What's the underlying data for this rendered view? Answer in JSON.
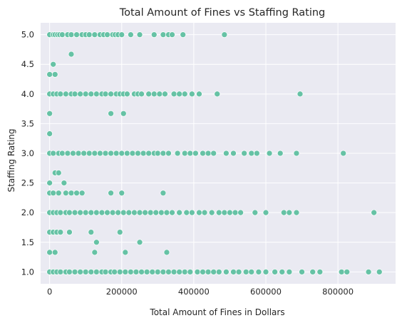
{
  "chart_data": {
    "type": "scatter",
    "title": "Total Amount of Fines vs Staffing Rating",
    "xlabel": "Total Amount of Fines in Dollars",
    "ylabel": "Staffing Rating",
    "xlim": [
      -25000,
      960000
    ],
    "ylim": [
      0.8,
      5.2
    ],
    "xticks": [
      0,
      200000,
      400000,
      600000,
      800000
    ],
    "xtick_labels": [
      "0",
      "200000",
      "400000",
      "600000",
      "800000"
    ],
    "yticks": [
      1.0,
      1.5,
      2.0,
      2.5,
      3.0,
      3.5,
      4.0,
      4.5,
      5.0
    ],
    "ytick_labels": [
      "1.0",
      "1.5",
      "2.0",
      "2.5",
      "3.0",
      "3.5",
      "4.0",
      "4.5",
      "5.0"
    ],
    "grid": true,
    "background": "#eaeaf2",
    "marker_color": "#66c2a5",
    "series": [
      {
        "points": [
          [
            0,
            5.0
          ],
          [
            10000,
            5.0
          ],
          [
            15000,
            5.0
          ],
          [
            22000,
            5.0
          ],
          [
            28000,
            5.0
          ],
          [
            35000,
            5.0
          ],
          [
            50000,
            5.0
          ],
          [
            60000,
            5.0
          ],
          [
            75000,
            5.0
          ],
          [
            90000,
            5.0
          ],
          [
            100000,
            5.0
          ],
          [
            110000,
            5.0
          ],
          [
            125000,
            5.0
          ],
          [
            140000,
            5.0
          ],
          [
            150000,
            5.0
          ],
          [
            160000,
            5.0
          ],
          [
            175000,
            5.0
          ],
          [
            182000,
            5.0
          ],
          [
            190000,
            5.0
          ],
          [
            200000,
            5.0
          ],
          [
            225000,
            5.0
          ],
          [
            250000,
            5.0
          ],
          [
            290000,
            5.0
          ],
          [
            315000,
            5.0
          ],
          [
            330000,
            5.0
          ],
          [
            340000,
            5.0
          ],
          [
            370000,
            5.0
          ],
          [
            485000,
            5.0
          ],
          [
            60000,
            4.67
          ],
          [
            10000,
            4.5
          ],
          [
            0,
            4.33
          ],
          [
            15000,
            4.33
          ],
          [
            0,
            4.0
          ],
          [
            10000,
            4.0
          ],
          [
            20000,
            4.0
          ],
          [
            30000,
            4.0
          ],
          [
            45000,
            4.0
          ],
          [
            60000,
            4.0
          ],
          [
            70000,
            4.0
          ],
          [
            85000,
            4.0
          ],
          [
            100000,
            4.0
          ],
          [
            115000,
            4.0
          ],
          [
            130000,
            4.0
          ],
          [
            145000,
            4.0
          ],
          [
            155000,
            4.0
          ],
          [
            170000,
            4.0
          ],
          [
            185000,
            4.0
          ],
          [
            195000,
            4.0
          ],
          [
            205000,
            4.0
          ],
          [
            215000,
            4.0
          ],
          [
            235000,
            4.0
          ],
          [
            245000,
            4.0
          ],
          [
            255000,
            4.0
          ],
          [
            275000,
            4.0
          ],
          [
            290000,
            4.0
          ],
          [
            305000,
            4.0
          ],
          [
            320000,
            4.0
          ],
          [
            345000,
            4.0
          ],
          [
            360000,
            4.0
          ],
          [
            375000,
            4.0
          ],
          [
            395000,
            4.0
          ],
          [
            415000,
            4.0
          ],
          [
            465000,
            4.0
          ],
          [
            695000,
            4.0
          ],
          [
            0,
            3.67
          ],
          [
            170000,
            3.67
          ],
          [
            205000,
            3.67
          ],
          [
            0,
            3.33
          ],
          [
            0,
            3.0
          ],
          [
            10000,
            3.0
          ],
          [
            25000,
            3.0
          ],
          [
            35000,
            3.0
          ],
          [
            50000,
            3.0
          ],
          [
            65000,
            3.0
          ],
          [
            80000,
            3.0
          ],
          [
            95000,
            3.0
          ],
          [
            110000,
            3.0
          ],
          [
            125000,
            3.0
          ],
          [
            140000,
            3.0
          ],
          [
            155000,
            3.0
          ],
          [
            170000,
            3.0
          ],
          [
            185000,
            3.0
          ],
          [
            200000,
            3.0
          ],
          [
            215000,
            3.0
          ],
          [
            230000,
            3.0
          ],
          [
            245000,
            3.0
          ],
          [
            260000,
            3.0
          ],
          [
            275000,
            3.0
          ],
          [
            290000,
            3.0
          ],
          [
            300000,
            3.0
          ],
          [
            315000,
            3.0
          ],
          [
            330000,
            3.0
          ],
          [
            355000,
            3.0
          ],
          [
            375000,
            3.0
          ],
          [
            390000,
            3.0
          ],
          [
            405000,
            3.0
          ],
          [
            425000,
            3.0
          ],
          [
            440000,
            3.0
          ],
          [
            455000,
            3.0
          ],
          [
            490000,
            3.0
          ],
          [
            510000,
            3.0
          ],
          [
            540000,
            3.0
          ],
          [
            560000,
            3.0
          ],
          [
            575000,
            3.0
          ],
          [
            610000,
            3.0
          ],
          [
            640000,
            3.0
          ],
          [
            685000,
            3.0
          ],
          [
            815000,
            3.0
          ],
          [
            15000,
            2.67
          ],
          [
            25000,
            2.67
          ],
          [
            0,
            2.5
          ],
          [
            40000,
            2.5
          ],
          [
            0,
            2.33
          ],
          [
            10000,
            2.33
          ],
          [
            25000,
            2.33
          ],
          [
            45000,
            2.33
          ],
          [
            60000,
            2.33
          ],
          [
            75000,
            2.33
          ],
          [
            90000,
            2.33
          ],
          [
            170000,
            2.33
          ],
          [
            200000,
            2.33
          ],
          [
            315000,
            2.33
          ],
          [
            0,
            2.0
          ],
          [
            10000,
            2.0
          ],
          [
            20000,
            2.0
          ],
          [
            30000,
            2.0
          ],
          [
            45000,
            2.0
          ],
          [
            55000,
            2.0
          ],
          [
            70000,
            2.0
          ],
          [
            85000,
            2.0
          ],
          [
            100000,
            2.0
          ],
          [
            115000,
            2.0
          ],
          [
            130000,
            2.0
          ],
          [
            145000,
            2.0
          ],
          [
            160000,
            2.0
          ],
          [
            175000,
            2.0
          ],
          [
            190000,
            2.0
          ],
          [
            205000,
            2.0
          ],
          [
            220000,
            2.0
          ],
          [
            235000,
            2.0
          ],
          [
            250000,
            2.0
          ],
          [
            265000,
            2.0
          ],
          [
            280000,
            2.0
          ],
          [
            295000,
            2.0
          ],
          [
            310000,
            2.0
          ],
          [
            325000,
            2.0
          ],
          [
            340000,
            2.0
          ],
          [
            360000,
            2.0
          ],
          [
            380000,
            2.0
          ],
          [
            395000,
            2.0
          ],
          [
            415000,
            2.0
          ],
          [
            430000,
            2.0
          ],
          [
            450000,
            2.0
          ],
          [
            470000,
            2.0
          ],
          [
            485000,
            2.0
          ],
          [
            500000,
            2.0
          ],
          [
            515000,
            2.0
          ],
          [
            530000,
            2.0
          ],
          [
            570000,
            2.0
          ],
          [
            600000,
            2.0
          ],
          [
            650000,
            2.0
          ],
          [
            665000,
            2.0
          ],
          [
            685000,
            2.0
          ],
          [
            900000,
            2.0
          ],
          [
            0,
            1.67
          ],
          [
            10000,
            1.67
          ],
          [
            20000,
            1.67
          ],
          [
            30000,
            1.67
          ],
          [
            55000,
            1.67
          ],
          [
            115000,
            1.67
          ],
          [
            195000,
            1.67
          ],
          [
            130000,
            1.5
          ],
          [
            250000,
            1.5
          ],
          [
            0,
            1.33
          ],
          [
            15000,
            1.33
          ],
          [
            125000,
            1.33
          ],
          [
            210000,
            1.33
          ],
          [
            325000,
            1.33
          ],
          [
            0,
            1.0
          ],
          [
            10000,
            1.0
          ],
          [
            20000,
            1.0
          ],
          [
            30000,
            1.0
          ],
          [
            45000,
            1.0
          ],
          [
            55000,
            1.0
          ],
          [
            70000,
            1.0
          ],
          [
            85000,
            1.0
          ],
          [
            100000,
            1.0
          ],
          [
            115000,
            1.0
          ],
          [
            130000,
            1.0
          ],
          [
            145000,
            1.0
          ],
          [
            155000,
            1.0
          ],
          [
            170000,
            1.0
          ],
          [
            180000,
            1.0
          ],
          [
            195000,
            1.0
          ],
          [
            210000,
            1.0
          ],
          [
            225000,
            1.0
          ],
          [
            240000,
            1.0
          ],
          [
            255000,
            1.0
          ],
          [
            270000,
            1.0
          ],
          [
            285000,
            1.0
          ],
          [
            300000,
            1.0
          ],
          [
            315000,
            1.0
          ],
          [
            330000,
            1.0
          ],
          [
            345000,
            1.0
          ],
          [
            360000,
            1.0
          ],
          [
            375000,
            1.0
          ],
          [
            390000,
            1.0
          ],
          [
            410000,
            1.0
          ],
          [
            425000,
            1.0
          ],
          [
            440000,
            1.0
          ],
          [
            455000,
            1.0
          ],
          [
            470000,
            1.0
          ],
          [
            490000,
            1.0
          ],
          [
            510000,
            1.0
          ],
          [
            525000,
            1.0
          ],
          [
            545000,
            1.0
          ],
          [
            560000,
            1.0
          ],
          [
            580000,
            1.0
          ],
          [
            600000,
            1.0
          ],
          [
            625000,
            1.0
          ],
          [
            645000,
            1.0
          ],
          [
            665000,
            1.0
          ],
          [
            700000,
            1.0
          ],
          [
            730000,
            1.0
          ],
          [
            750000,
            1.0
          ],
          [
            810000,
            1.0
          ],
          [
            825000,
            1.0
          ],
          [
            885000,
            1.0
          ],
          [
            915000,
            1.0
          ]
        ]
      }
    ]
  }
}
